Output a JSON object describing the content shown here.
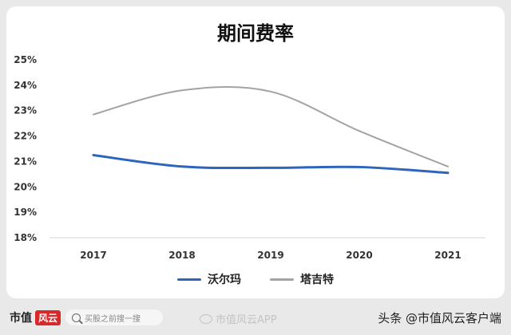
{
  "chart_data": {
    "type": "line",
    "title": "期间费率",
    "categories": [
      "2017",
      "2018",
      "2019",
      "2020",
      "2021"
    ],
    "yticks": [
      "25%",
      "24%",
      "23%",
      "22%",
      "21%",
      "20%",
      "19%",
      "18%"
    ],
    "ylim": [
      18,
      25
    ],
    "grid": false,
    "legend_position": "bottom",
    "series": [
      {
        "name": "沃尔玛",
        "color": "#2f64bd",
        "values": [
          21.25,
          20.8,
          20.75,
          20.78,
          20.55
        ]
      },
      {
        "name": "塔吉特",
        "color": "#a7a2a2",
        "values": [
          22.85,
          23.8,
          23.75,
          22.2,
          20.8
        ]
      }
    ]
  },
  "footer": {
    "brand": "市值",
    "brand_badge": "风云",
    "search_placeholder": "买股之前搜一搜",
    "app_watermark": "市值风云APP",
    "source_text": "头条 @市值风云客户端"
  }
}
